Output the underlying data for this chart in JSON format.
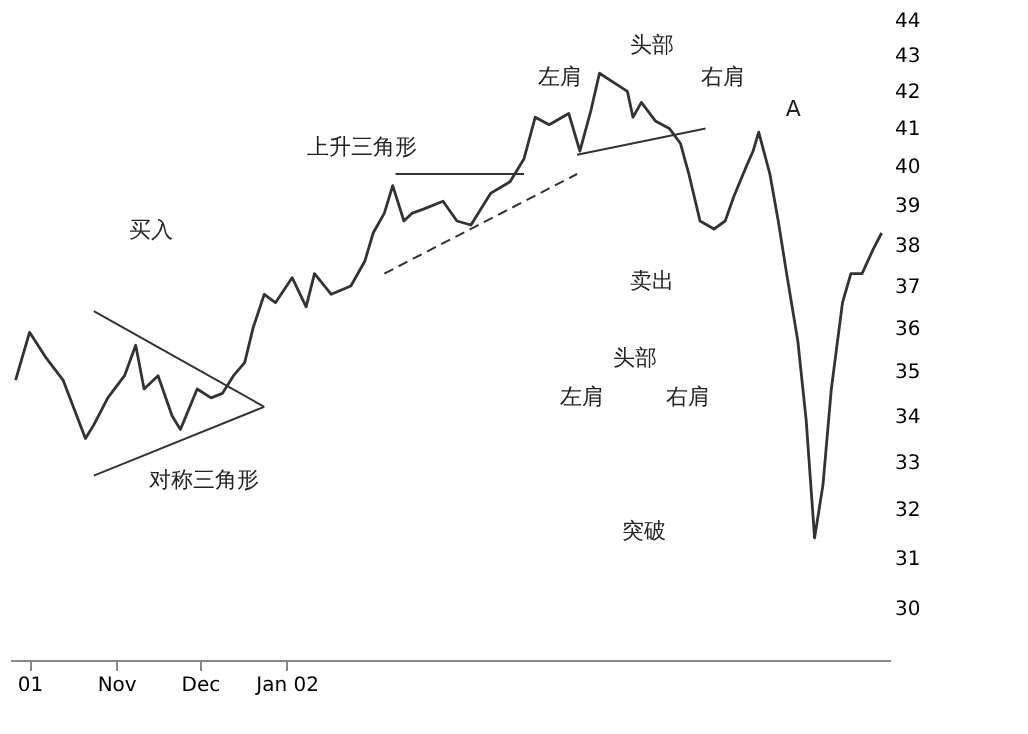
{
  "chart_data": {
    "type": "line",
    "log": "y",
    "grid": false,
    "ylim": [
      29,
      44
    ],
    "yticks": [
      30,
      31,
      32,
      33,
      34,
      35,
      36,
      37,
      38,
      39,
      40,
      41,
      42,
      43,
      44
    ],
    "xlim": [
      "2001-09-24",
      "2002-08-05"
    ],
    "xticks": [
      {
        "value": "2001-10-01",
        "label": "01"
      },
      {
        "value": "2001-11-01",
        "label": "Nov"
      },
      {
        "value": "2001-12-01",
        "label": "Dec"
      },
      {
        "value": "2002-01-01",
        "label": "Jan 02"
      }
    ],
    "series": [
      {
        "color": "#333333",
        "x": [
          "2001-09-26",
          "2001-10-01",
          "2001-10-07",
          "2001-10-13",
          "2001-10-21",
          "2001-10-24",
          "2001-10-29",
          "2001-11-04",
          "2001-11-08",
          "2001-11-11",
          "2001-11-16",
          "2001-11-21",
          "2001-11-24",
          "2001-11-30",
          "2001-12-05",
          "2001-12-09",
          "2001-12-13",
          "2001-12-17",
          "2001-12-20",
          "2001-12-24",
          "2001-12-28",
          "2002-01-03",
          "2002-01-08",
          "2002-01-11",
          "2002-01-17",
          "2002-01-24",
          "2002-01-29",
          "2002-02-01",
          "2002-02-05",
          "2002-02-08",
          "2002-02-12",
          "2002-02-15",
          "2002-02-19",
          "2002-02-26",
          "2002-03-03",
          "2002-03-08",
          "2002-03-15",
          "2002-03-22",
          "2002-03-27",
          "2002-03-31",
          "2002-04-05",
          "2002-04-12",
          "2002-04-16",
          "2002-04-20",
          "2002-04-23",
          "2002-04-29",
          "2002-05-03",
          "2002-05-05",
          "2002-05-08",
          "2002-05-13",
          "2002-05-18",
          "2002-05-22",
          "2002-05-25",
          "2002-05-29",
          "2002-06-03",
          "2002-06-07",
          "2002-06-10",
          "2002-06-14",
          "2002-06-17",
          "2002-06-19",
          "2002-06-23",
          "2002-06-26",
          "2002-06-29",
          "2002-07-03",
          "2002-07-06",
          "2002-07-09",
          "2002-07-12",
          "2002-07-15",
          "2002-07-19",
          "2002-07-22",
          "2002-07-26",
          "2002-07-30",
          "2002-08-02"
        ],
        "values": [
          34.8,
          35.9,
          35.3,
          34.8,
          33.5,
          33.8,
          34.4,
          34.9,
          35.6,
          34.6,
          34.9,
          34.0,
          33.7,
          34.6,
          34.4,
          34.5,
          34.9,
          35.2,
          36.0,
          36.8,
          36.6,
          37.2,
          36.5,
          37.3,
          36.8,
          37.0,
          37.6,
          38.3,
          38.8,
          39.5,
          38.6,
          38.8,
          38.9,
          39.1,
          38.6,
          38.5,
          39.3,
          39.6,
          40.2,
          41.3,
          41.1,
          41.4,
          40.4,
          41.5,
          42.5,
          42.2,
          42.0,
          41.3,
          41.7,
          41.2,
          41.0,
          40.6,
          39.8,
          38.6,
          38.4,
          38.6,
          39.2,
          39.9,
          40.4,
          40.9,
          39.8,
          38.6,
          37.3,
          35.7,
          33.9,
          31.4,
          32.5,
          34.6,
          36.6,
          37.3,
          37.3,
          37.9,
          38.3
        ]
      },
      {
        "color": "#333333",
        "x": [
          "2001-10-24",
          "2001-12-24"
        ],
        "values": [
          36.4,
          34.2
        ]
      },
      {
        "color": "#333333",
        "x": [
          "2001-10-24",
          "2001-12-24"
        ],
        "values": [
          32.7,
          34.2
        ]
      },
      {
        "color": "#333333",
        "x": [
          "2002-02-09",
          "2002-03-27"
        ],
        "values": [
          39.8,
          39.8
        ]
      },
      {
        "color": "#333333",
        "line_style": "dashed",
        "x": [
          "2002-02-05",
          "2002-04-15"
        ],
        "values": [
          37.3,
          39.8
        ]
      },
      {
        "color": "#333333",
        "x": [
          "2002-04-15",
          "2002-05-31"
        ],
        "values": [
          40.3,
          41.0
        ]
      }
    ],
    "annotations": [
      "买入",
      "对称三角形",
      "上升三角形",
      "左肩",
      "头部",
      "右肩",
      "卖出",
      "A",
      "头部",
      "左肩",
      "右肩",
      "突破"
    ]
  }
}
